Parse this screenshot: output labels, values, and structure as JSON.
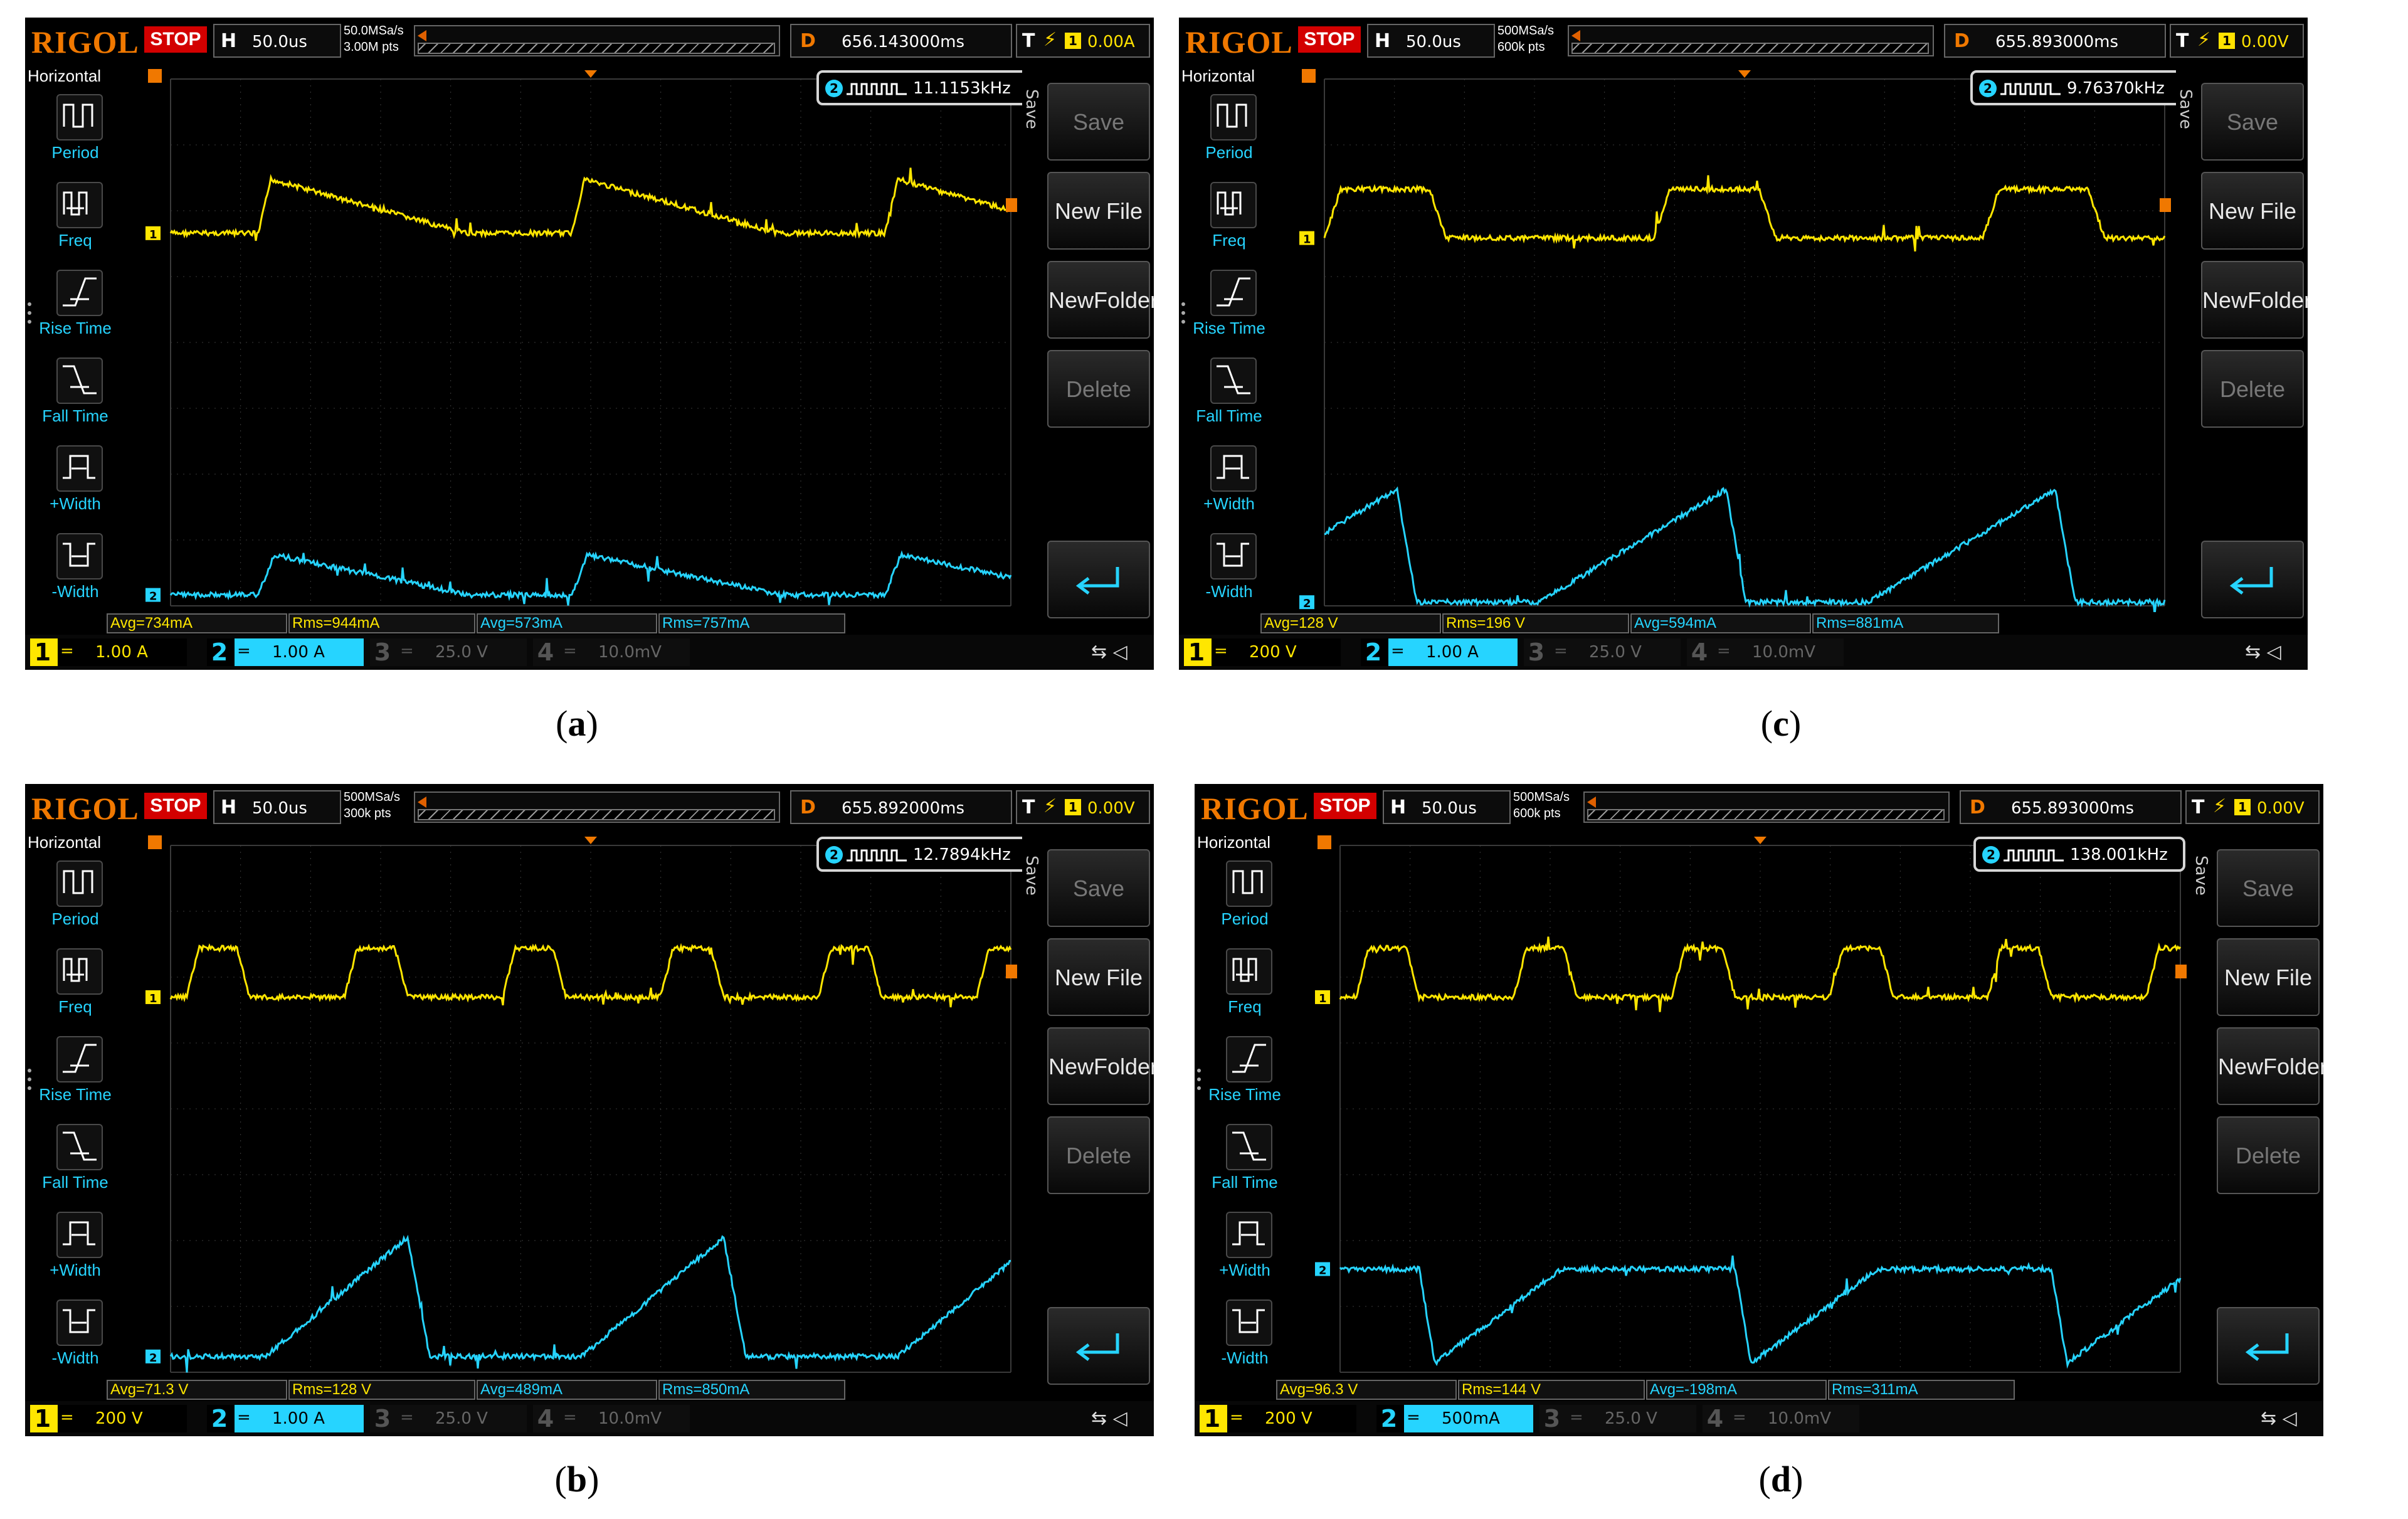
{
  "panels": [
    {
      "id": "a",
      "caption_open": "(",
      "caption_letter": "a",
      "caption_close": ")",
      "logo": "RIGOL",
      "run_state": "STOP",
      "timebase_label": "H",
      "timebase": "50.0us",
      "sample_rate": "50.0MSa/s",
      "memory_depth": "3.00M pts",
      "delay_label": "D",
      "delay": "656.143000ms",
      "trigger_label": "T",
      "trigger_channel": "1",
      "trigger_level": "0.00A",
      "frequency": "11.1153kHz",
      "frequency_channel": "2",
      "left_menu_title": "Horizontal",
      "left_menu": [
        "Period",
        "Freq",
        "Rise Time",
        "Fall Time",
        "+Width",
        "-Width"
      ],
      "right_menu_title": "Save",
      "right_menu": [
        "Save",
        "New File",
        "NewFolder",
        "Delete"
      ],
      "measurements": [
        "Avg=734mA",
        "Rms=944mA",
        "Avg=573mA",
        "Rms=757mA"
      ],
      "channels": [
        {
          "num": "1",
          "coupling": "=",
          "scale": "1.00 A",
          "color": "#ffe600",
          "active": true
        },
        {
          "num": "2",
          "coupling": "=",
          "scale": "1.00 A",
          "color": "#26d4ff",
          "active": true
        },
        {
          "num": "3",
          "coupling": "=",
          "scale": "25.0 V",
          "color": "#a04fa0",
          "active": false
        },
        {
          "num": "4",
          "coupling": "=",
          "scale": "10.0mV",
          "color": "#3355cc",
          "active": false
        }
      ]
    },
    {
      "id": "c",
      "caption_open": "(",
      "caption_letter": "c",
      "caption_close": ")",
      "logo": "RIGOL",
      "run_state": "STOP",
      "timebase_label": "H",
      "timebase": "50.0us",
      "sample_rate": "500MSa/s",
      "memory_depth": "600k pts",
      "delay_label": "D",
      "delay": "655.893000ms",
      "trigger_label": "T",
      "trigger_channel": "1",
      "trigger_level": "0.00V",
      "frequency": "9.76370kHz",
      "frequency_channel": "2",
      "left_menu_title": "Horizontal",
      "left_menu": [
        "Period",
        "Freq",
        "Rise Time",
        "Fall Time",
        "+Width",
        "-Width"
      ],
      "right_menu_title": "Save",
      "right_menu": [
        "Save",
        "New File",
        "NewFolder",
        "Delete"
      ],
      "measurements": [
        "Avg=128 V",
        "Rms=196 V",
        "Avg=594mA",
        "Rms=881mA"
      ],
      "channels": [
        {
          "num": "1",
          "coupling": "=",
          "scale": "200 V",
          "color": "#ffe600",
          "active": true
        },
        {
          "num": "2",
          "coupling": "=",
          "scale": "1.00 A",
          "color": "#26d4ff",
          "active": true
        },
        {
          "num": "3",
          "coupling": "=",
          "scale": "25.0 V",
          "color": "#a04fa0",
          "active": false
        },
        {
          "num": "4",
          "coupling": "=",
          "scale": "10.0mV",
          "color": "#3355cc",
          "active": false
        }
      ]
    },
    {
      "id": "b",
      "caption_open": "(",
      "caption_letter": "b",
      "caption_close": ")",
      "logo": "RIGOL",
      "run_state": "STOP",
      "timebase_label": "H",
      "timebase": "50.0us",
      "sample_rate": "500MSa/s",
      "memory_depth": "300k pts",
      "delay_label": "D",
      "delay": "655.892000ms",
      "trigger_label": "T",
      "trigger_channel": "1",
      "trigger_level": "0.00V",
      "frequency": "12.7894kHz",
      "frequency_channel": "2",
      "left_menu_title": "Horizontal",
      "left_menu": [
        "Period",
        "Freq",
        "Rise Time",
        "Fall Time",
        "+Width",
        "-Width"
      ],
      "right_menu_title": "Save",
      "right_menu": [
        "Save",
        "New File",
        "NewFolder",
        "Delete"
      ],
      "measurements": [
        "Avg=71.3 V",
        "Rms=128 V",
        "Avg=489mA",
        "Rms=850mA"
      ],
      "channels": [
        {
          "num": "1",
          "coupling": "=",
          "scale": "200 V",
          "color": "#ffe600",
          "active": true
        },
        {
          "num": "2",
          "coupling": "=",
          "scale": "1.00 A",
          "color": "#26d4ff",
          "active": true
        },
        {
          "num": "3",
          "coupling": "=",
          "scale": "25.0 V",
          "color": "#a04fa0",
          "active": false
        },
        {
          "num": "4",
          "coupling": "=",
          "scale": "10.0mV",
          "color": "#3355cc",
          "active": false
        }
      ]
    },
    {
      "id": "d",
      "caption_open": "(",
      "caption_letter": "d",
      "caption_close": ")",
      "logo": "RIGOL",
      "run_state": "STOP",
      "timebase_label": "H",
      "timebase": "50.0us",
      "sample_rate": "500MSa/s",
      "memory_depth": "600k pts",
      "delay_label": "D",
      "delay": "655.893000ms",
      "trigger_label": "T",
      "trigger_channel": "1",
      "trigger_level": "0.00V",
      "frequency": "138.001kHz",
      "frequency_channel": "2",
      "left_menu_title": "Horizontal",
      "left_menu": [
        "Period",
        "Freq",
        "Rise Time",
        "Fall Time",
        "+Width",
        "-Width"
      ],
      "right_menu_title": "Save",
      "right_menu": [
        "Save",
        "New File",
        "NewFolder",
        "Delete"
      ],
      "measurements": [
        "Avg=96.3 V",
        "Rms=144 V",
        "Avg=-198mA",
        "Rms=311mA"
      ],
      "channels": [
        {
          "num": "1",
          "coupling": "=",
          "scale": "200 V",
          "color": "#ffe600",
          "active": true
        },
        {
          "num": "2",
          "coupling": "=",
          "scale": "500mA",
          "color": "#26d4ff",
          "active": true
        },
        {
          "num": "3",
          "coupling": "=",
          "scale": "25.0 V",
          "color": "#a04fa0",
          "active": false
        },
        {
          "num": "4",
          "coupling": "=",
          "scale": "10.0mV",
          "color": "#3355cc",
          "active": false
        }
      ]
    }
  ],
  "colors": {
    "ch1": "#ffe600",
    "ch2": "#26d4ff",
    "grid": "#3a3a3a",
    "stop": "#d30000",
    "logo": "#f07800"
  }
}
